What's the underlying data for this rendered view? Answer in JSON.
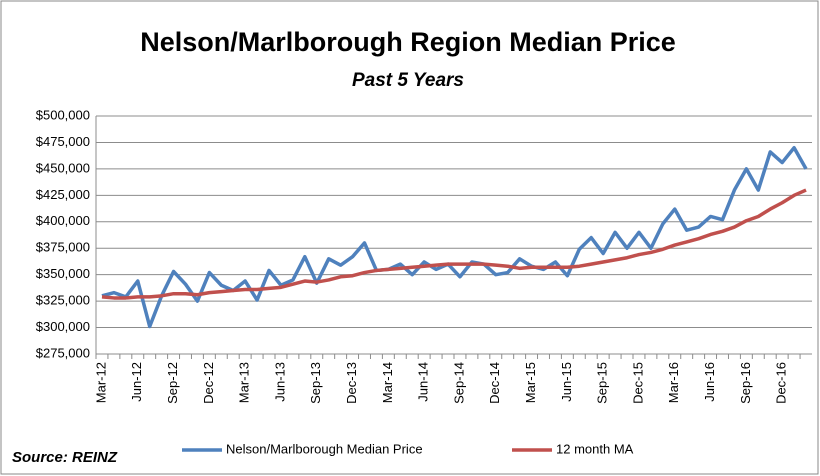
{
  "chart_data": {
    "type": "line",
    "title": "Nelson/Marlborough Region Median Price",
    "subtitle": "Past 5 Years",
    "source": "Source: REINZ",
    "categories": [
      "Mar-12",
      null,
      null,
      "Jun-12",
      null,
      null,
      "Sep-12",
      null,
      null,
      "Dec-12",
      null,
      null,
      "Mar-13",
      null,
      null,
      "Jun-13",
      null,
      null,
      "Sep-13",
      null,
      null,
      "Dec-13",
      null,
      null,
      "Mar-14",
      null,
      null,
      "Jun-14",
      null,
      null,
      "Sep-14",
      null,
      null,
      "Dec-14",
      null,
      null,
      "Mar-15",
      null,
      null,
      "Jun-15",
      null,
      null,
      "Sep-15",
      null,
      null,
      "Dec-15",
      null,
      null,
      "Mar-16",
      null,
      null,
      "Jun-16",
      null,
      null,
      "Sep-16",
      null,
      null,
      "Dec-16",
      null,
      null
    ],
    "series": [
      {
        "name": "Nelson/Marlborough Median Price",
        "color": "#4f81bd",
        "values": [
          330000,
          333000,
          329000,
          344000,
          301000,
          330000,
          353000,
          341000,
          325000,
          352000,
          340000,
          335000,
          344000,
          326000,
          354000,
          340000,
          345000,
          367000,
          342000,
          365000,
          359000,
          367000,
          380000,
          354000,
          355000,
          360000,
          350000,
          362000,
          355000,
          360000,
          348000,
          362000,
          360000,
          350000,
          352000,
          365000,
          358000,
          355000,
          362000,
          349000,
          374000,
          385000,
          370000,
          390000,
          375000,
          390000,
          375000,
          398000,
          412000,
          392000,
          395000,
          405000,
          402000,
          430000,
          450000,
          430000,
          466000,
          456000,
          470000,
          450000
        ]
      },
      {
        "name": "12 month MA",
        "color": "#c0504d",
        "values": [
          329000,
          328000,
          328000,
          329000,
          329000,
          330000,
          332000,
          332000,
          331000,
          333000,
          334000,
          335000,
          336000,
          336000,
          337000,
          338000,
          341000,
          344000,
          343000,
          345000,
          348000,
          349000,
          352000,
          354000,
          355000,
          356000,
          357000,
          358000,
          359000,
          360000,
          360000,
          360000,
          360000,
          359000,
          358000,
          356000,
          357000,
          357000,
          357000,
          357000,
          358000,
          360000,
          362000,
          364000,
          366000,
          369000,
          371000,
          374000,
          378000,
          381000,
          384000,
          388000,
          391000,
          395000,
          401000,
          405000,
          412000,
          418000,
          425000,
          430000
        ]
      }
    ],
    "ylim": [
      275000,
      500000
    ],
    "yticks": [
      {
        "value": 275000,
        "label": "$275,000"
      },
      {
        "value": 300000,
        "label": "$300,000"
      },
      {
        "value": 325000,
        "label": "$325,000"
      },
      {
        "value": 350000,
        "label": "$350,000"
      },
      {
        "value": 375000,
        "label": "$375,000"
      },
      {
        "value": 400000,
        "label": "$400,000"
      },
      {
        "value": 425000,
        "label": "$425,000"
      },
      {
        "value": 450000,
        "label": "$450,000"
      },
      {
        "value": 475000,
        "label": "$475,000"
      },
      {
        "value": 500000,
        "label": "$500,000"
      }
    ],
    "grid": true
  }
}
